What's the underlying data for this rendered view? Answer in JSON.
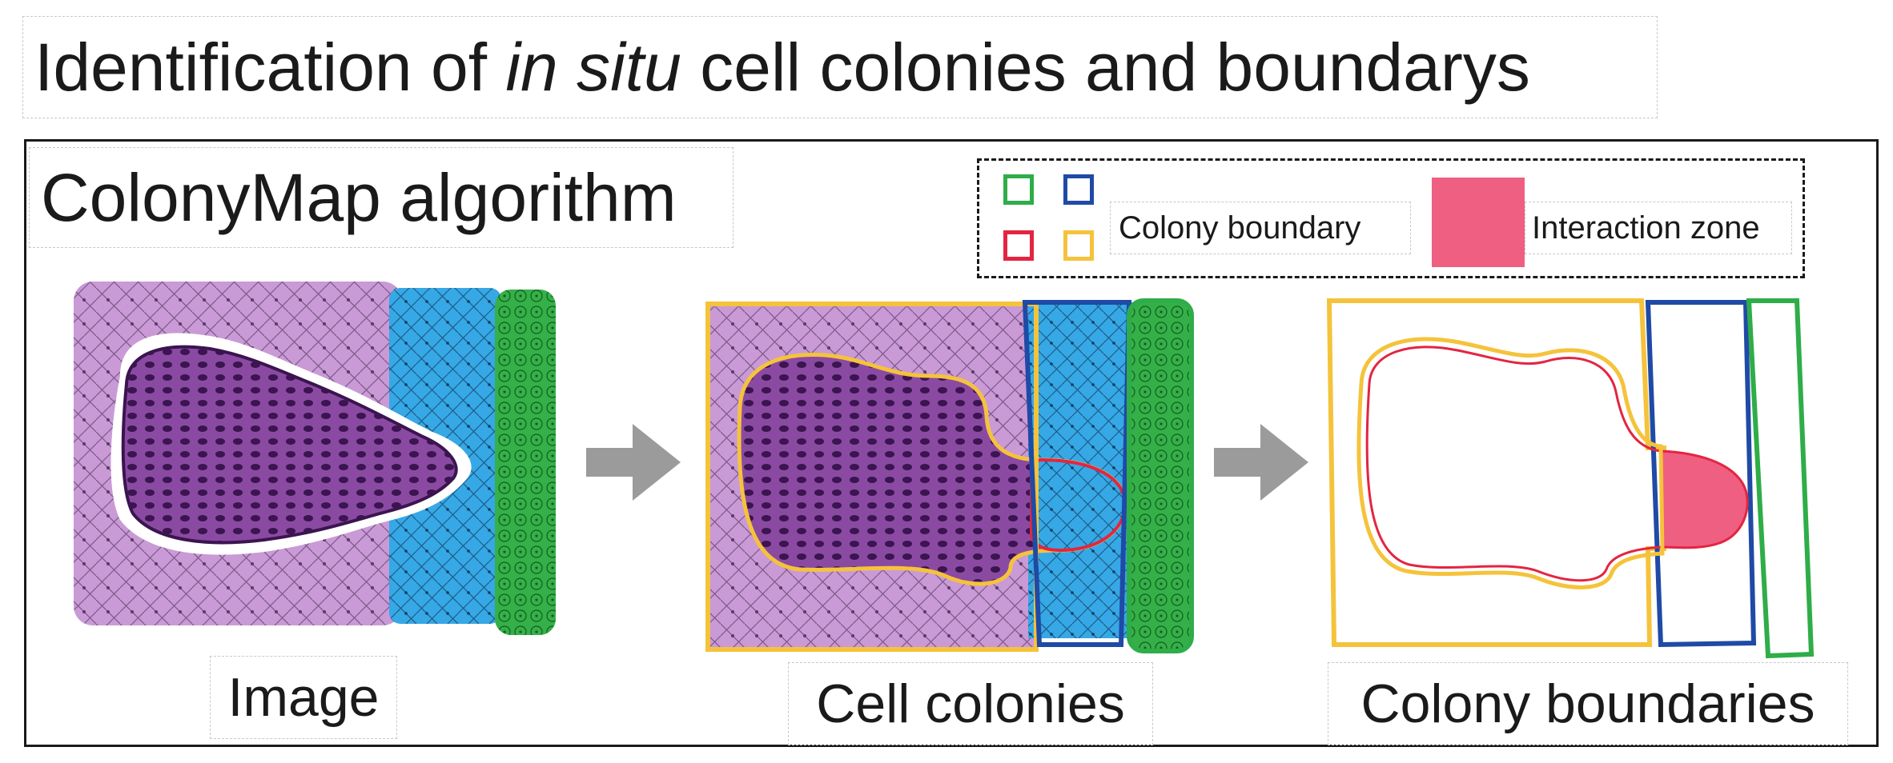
{
  "title": {
    "prefix": "Identification of ",
    "italic": "in situ",
    "suffix": " cell colonies and boundarys"
  },
  "panel": {
    "heading": "ColonyMap algorithm"
  },
  "legend": {
    "boundary_label": "Colony boundary",
    "zone_label": "Interaction zone",
    "boundary_colors": [
      "#2fad48",
      "#1f4aa6",
      "#e32541",
      "#f5c33b"
    ],
    "zone_color": "#ee5f82"
  },
  "steps": [
    {
      "caption": "Image"
    },
    {
      "caption": "Cell colonies"
    },
    {
      "caption": "Colony boundaries"
    }
  ],
  "colors": {
    "purple_tissue": "#c99ad6",
    "dark_colony": "#6c2d86",
    "blue_tissue": "#36a8e6",
    "green_tissue": "#35b048",
    "arrow": "#9b9b9b",
    "yellow_boundary": "#f5c33b",
    "red_boundary": "#e32541",
    "blue_boundary": "#1f4aa6",
    "green_boundary": "#2fad48"
  }
}
